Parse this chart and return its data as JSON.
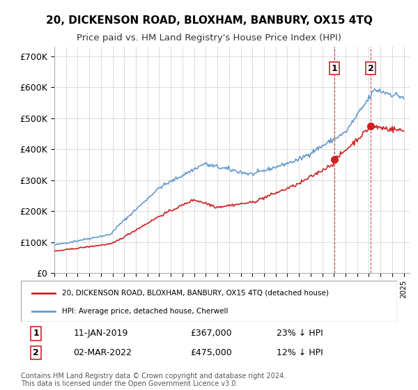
{
  "title": "20, DICKENSON ROAD, BLOXHAM, BANBURY, OX15 4TQ",
  "subtitle": "Price paid vs. HM Land Registry's House Price Index (HPI)",
  "ylabel_ticks": [
    "£0",
    "£100K",
    "£200K",
    "£300K",
    "£400K",
    "£500K",
    "£600K",
    "£700K"
  ],
  "ytick_vals": [
    0,
    100000,
    200000,
    300000,
    400000,
    500000,
    600000,
    700000
  ],
  "ylim": [
    0,
    730000
  ],
  "xlim_start": 1995.0,
  "xlim_end": 2025.5,
  "legend_line1": "20, DICKENSON ROAD, BLOXHAM, BANBURY, OX15 4TQ (detached house)",
  "legend_line2": "HPI: Average price, detached house, Cherwell",
  "sale1_label": "1",
  "sale1_date": "11-JAN-2019",
  "sale1_price": "£367,000",
  "sale1_pct": "23% ↓ HPI",
  "sale2_label": "2",
  "sale2_date": "02-MAR-2022",
  "sale2_price": "£475,000",
  "sale2_pct": "12% ↓ HPI",
  "footnote": "Contains HM Land Registry data © Crown copyright and database right 2024.\nThis data is licensed under the Open Government Licence v3.0.",
  "line_color_hpi": "#6699cc",
  "line_color_sale": "#cc2222",
  "vline_color": "#cc2222",
  "grid_color": "#cccccc",
  "background_color": "#ffffff"
}
